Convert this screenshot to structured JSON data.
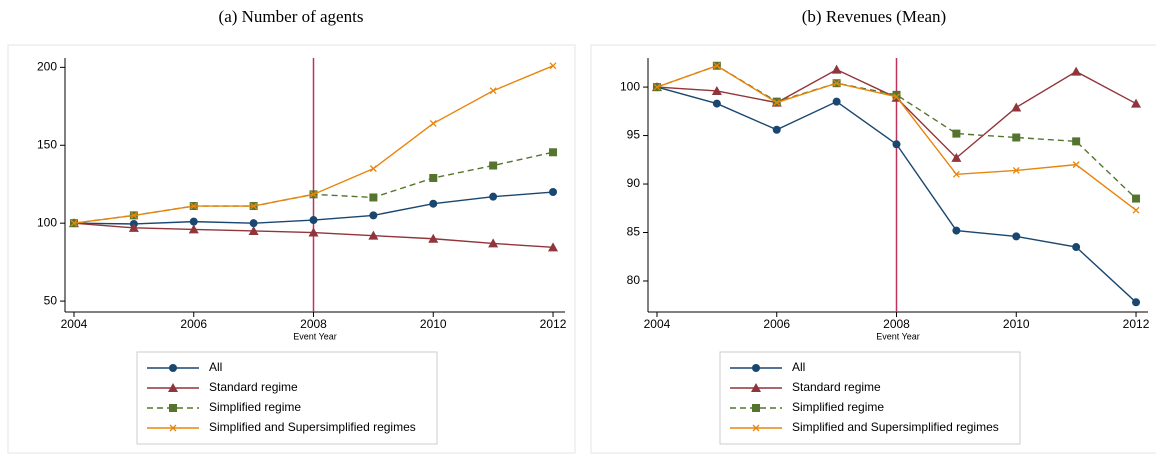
{
  "chart_data": [
    {
      "type": "line",
      "title": "(a) Number of agents",
      "xlabel": "Event Year",
      "x": [
        2004,
        2005,
        2006,
        2007,
        2008,
        2009,
        2010,
        2011,
        2012
      ],
      "xlim": [
        2003.85,
        2012.2
      ],
      "xticks": [
        2004,
        2006,
        2008,
        2010,
        2012
      ],
      "ylim": [
        43,
        206
      ],
      "yticks": [
        50,
        100,
        150,
        200
      ],
      "vline": 2008,
      "vline_color": "#c0325a",
      "series": [
        {
          "name": "All",
          "color": "#1a476f",
          "marker": "circle",
          "dashed": false,
          "values": [
            100,
            99.5,
            101,
            100,
            102,
            105,
            112.5,
            117,
            120
          ]
        },
        {
          "name": "Standard regime",
          "color": "#90353b",
          "marker": "triangle",
          "dashed": false,
          "values": [
            100,
            97,
            96,
            95,
            94,
            92,
            90,
            87,
            84.5
          ]
        },
        {
          "name": "Simplified regime",
          "color": "#55752f",
          "marker": "square",
          "dashed": true,
          "values": [
            100,
            105,
            111,
            111,
            118.5,
            116.5,
            129,
            137,
            145.5
          ]
        },
        {
          "name": "Simplified and Supersimplified regimes",
          "color": "#e8850c",
          "marker": "x",
          "dashed": false,
          "values": [
            100,
            105,
            111,
            111,
            118.5,
            135,
            164,
            185,
            201
          ]
        }
      ]
    },
    {
      "type": "line",
      "title": "(b) Revenues (Mean)",
      "xlabel": "Event Year",
      "x": [
        2004,
        2005,
        2006,
        2007,
        2008,
        2009,
        2010,
        2011,
        2012
      ],
      "xlim": [
        2003.85,
        2012.2
      ],
      "xticks": [
        2004,
        2006,
        2008,
        2010,
        2012
      ],
      "ylim": [
        76.8,
        103
      ],
      "yticks": [
        80,
        85,
        90,
        95,
        100
      ],
      "vline": 2008,
      "vline_color": "#c0325a",
      "series": [
        {
          "name": "All",
          "color": "#1a476f",
          "marker": "circle",
          "dashed": false,
          "values": [
            100,
            98.3,
            95.6,
            98.5,
            94.1,
            85.2,
            84.6,
            83.5,
            77.8
          ]
        },
        {
          "name": "Standard regime",
          "color": "#90353b",
          "marker": "triangle",
          "dashed": false,
          "values": [
            100,
            99.6,
            98.4,
            101.8,
            98.9,
            92.7,
            97.9,
            101.6,
            98.3
          ]
        },
        {
          "name": "Simplified regime",
          "color": "#55752f",
          "marker": "square",
          "dashed": true,
          "values": [
            100,
            102.2,
            98.5,
            100.4,
            99.2,
            95.2,
            94.8,
            94.4,
            88.5
          ]
        },
        {
          "name": "Simplified and Supersimplified regimes",
          "color": "#e8850c",
          "marker": "x",
          "dashed": false,
          "values": [
            100,
            102.2,
            98.4,
            100.4,
            99.0,
            91.0,
            91.4,
            92.0,
            87.3
          ]
        }
      ]
    }
  ]
}
